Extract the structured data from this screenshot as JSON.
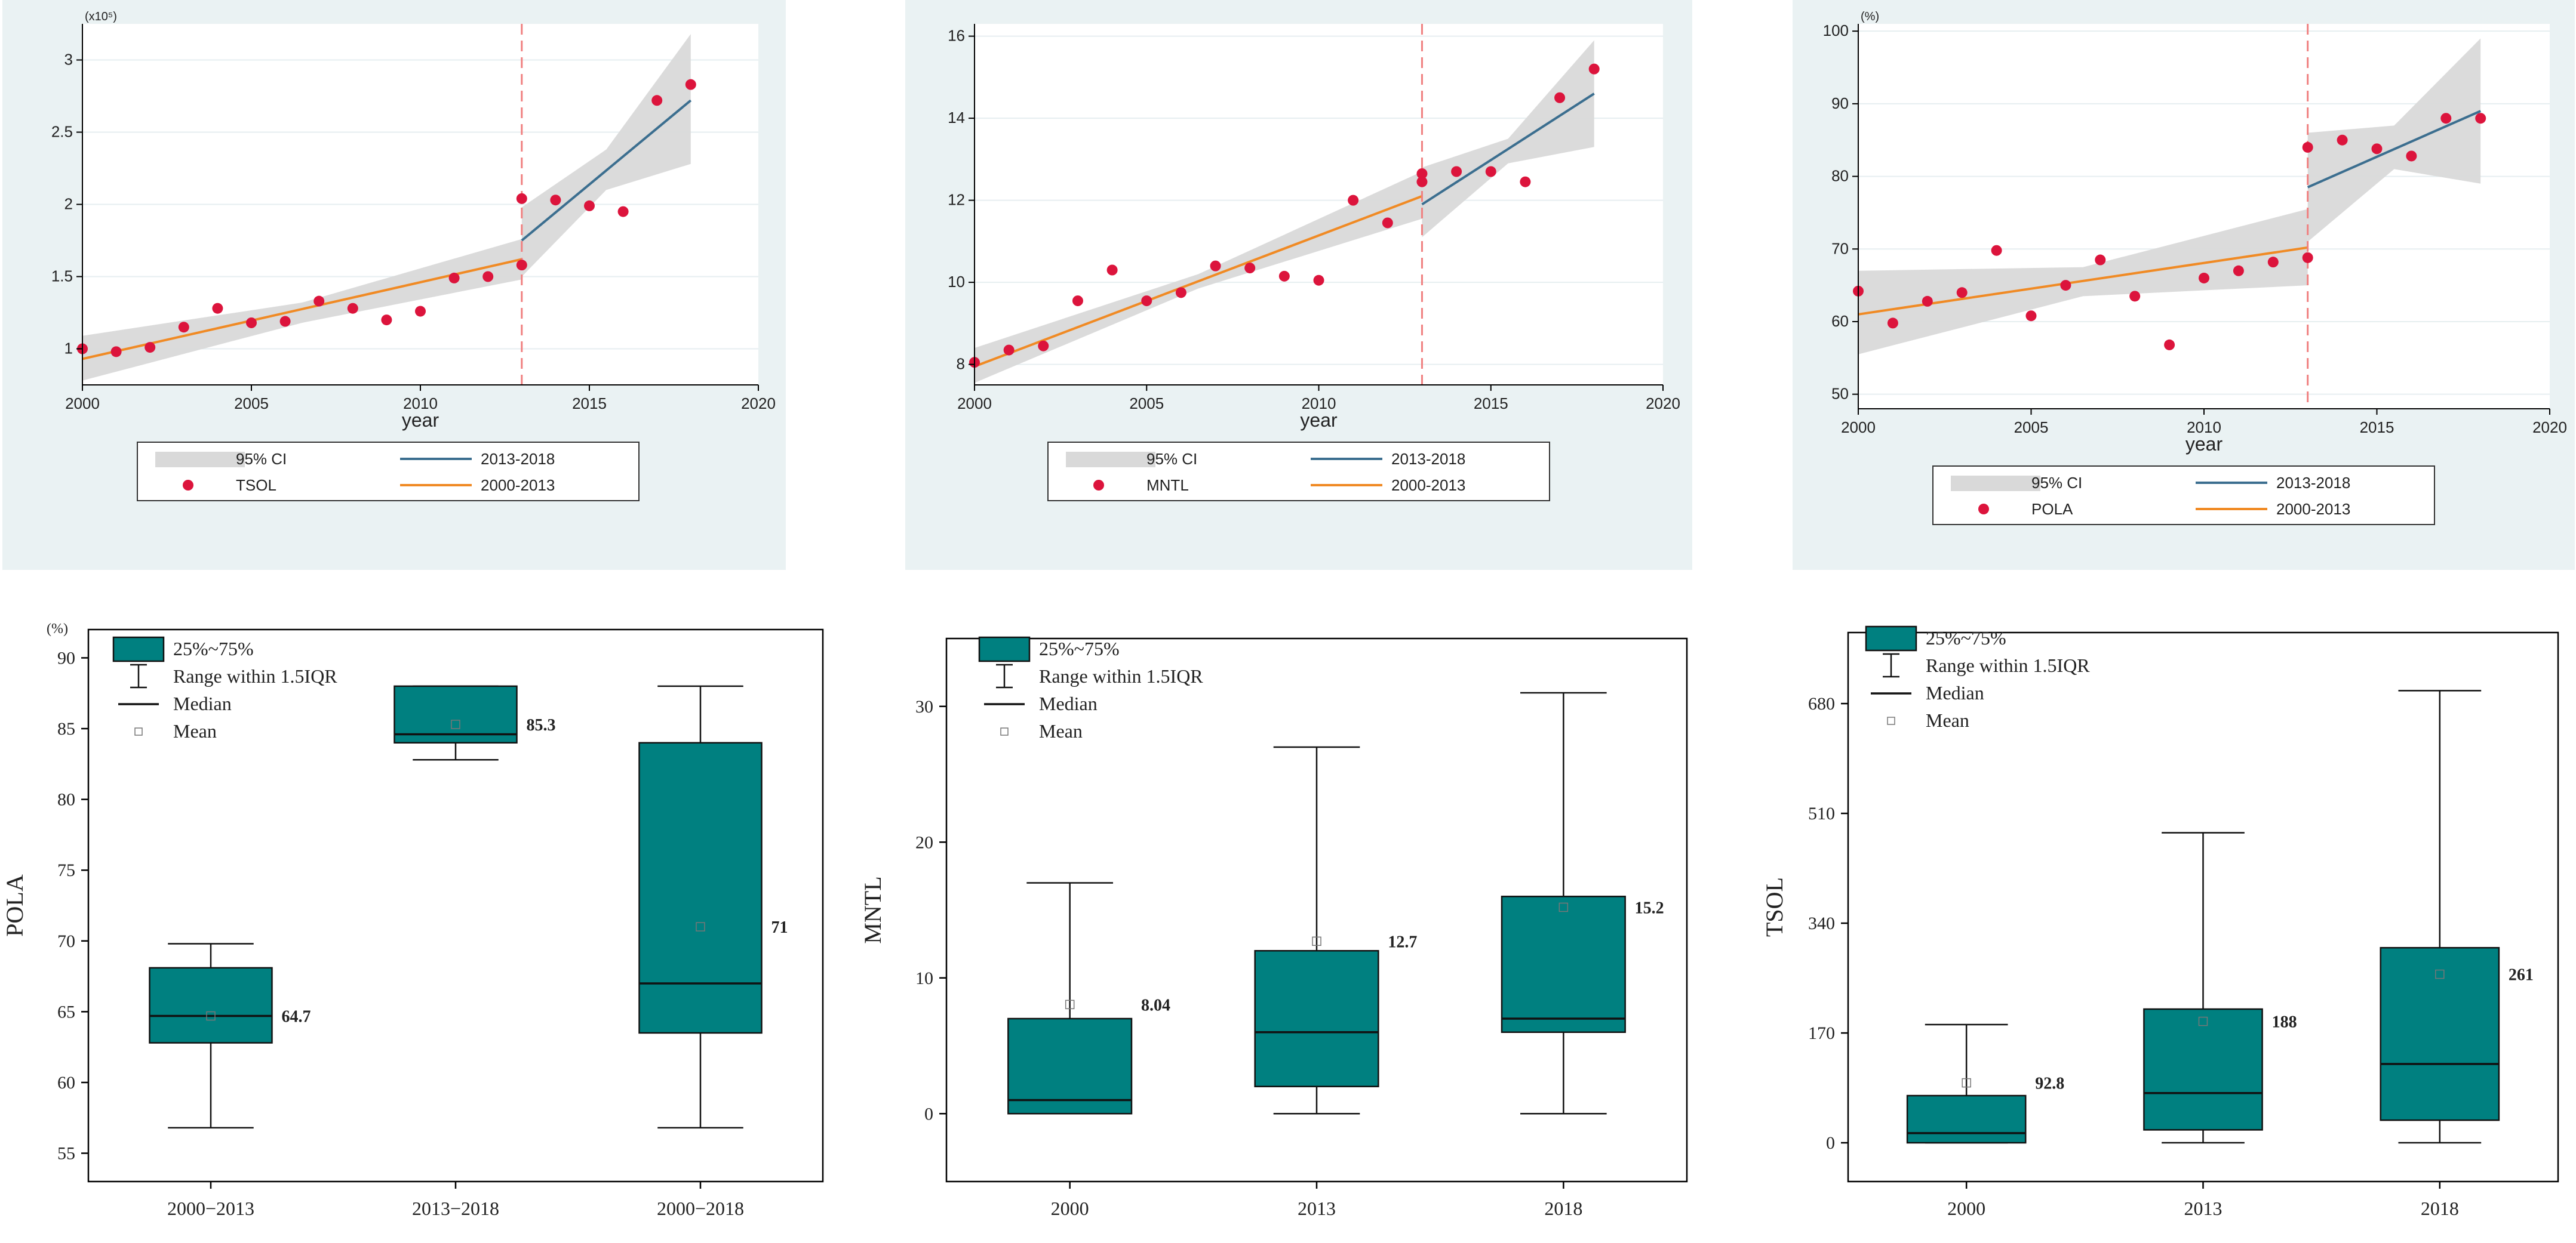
{
  "figure": {
    "colors": {
      "panel_bg": "#eaf2f3",
      "plot_bg": "#ffffff",
      "grid": "#e6eef0",
      "ci": "#d9d9d9",
      "line_2013_2018": "#3b6e8f",
      "line_2000_2013": "#f08a24",
      "dots": "#dc143c",
      "vline": "#f08080",
      "box_fill": "#008080",
      "box_stroke": "#111111"
    }
  },
  "chart_data": [
    {
      "type": "scatter",
      "id": "tsol_trend",
      "title": "",
      "xlabel": "year",
      "ylabel": "",
      "y_multiplier_label": "(x10⁵)",
      "xlim": [
        2000,
        2020
      ],
      "ylim": [
        0.75,
        3.25
      ],
      "x_ticks": [
        2000,
        2005,
        2010,
        2015,
        2020
      ],
      "y_ticks": [
        1,
        1.5,
        2,
        2.5,
        3
      ],
      "y_tick_labels": [
        "1",
        "1.5",
        "2",
        "2.5",
        "3"
      ],
      "break_year": 2013,
      "points": {
        "name": "TSOL",
        "x": [
          2000,
          2001,
          2002,
          2003,
          2004,
          2005,
          2006,
          2007,
          2008,
          2009,
          2010,
          2011,
          2012,
          2013,
          2013,
          2014,
          2015,
          2016,
          2017,
          2018
        ],
        "y": [
          1.0,
          0.98,
          1.01,
          1.15,
          1.28,
          1.18,
          1.19,
          1.33,
          1.28,
          1.2,
          1.26,
          1.49,
          1.5,
          1.58,
          2.04,
          2.03,
          1.99,
          1.95,
          2.72,
          2.83
        ]
      },
      "fit_2000_2013": {
        "name": "2000-2013",
        "x": [
          2000,
          2013
        ],
        "y": [
          0.93,
          1.62
        ]
      },
      "fit_2013_2018": {
        "name": "2013-2018",
        "x": [
          2013,
          2018
        ],
        "y": [
          1.75,
          2.72
        ]
      },
      "ci_2000_2013": {
        "x": [
          2000,
          2006.5,
          2013
        ],
        "lower": [
          0.78,
          1.18,
          1.48
        ],
        "upper": [
          1.09,
          1.32,
          1.76
        ]
      },
      "ci_2013_2018": {
        "x": [
          2013,
          2015.5,
          2018
        ],
        "lower": [
          1.5,
          2.1,
          2.28
        ],
        "upper": [
          1.98,
          2.38,
          3.18
        ]
      },
      "legend": [
        {
          "kind": "ci",
          "label": "95% CI"
        },
        {
          "kind": "line_2013_2018",
          "label": "2013-2018"
        },
        {
          "kind": "dot",
          "label": "TSOL"
        },
        {
          "kind": "line_2000_2013",
          "label": "2000-2013"
        }
      ]
    },
    {
      "type": "scatter",
      "id": "mntl_trend",
      "title": "",
      "xlabel": "year",
      "ylabel": "",
      "y_multiplier_label": "",
      "xlim": [
        2000,
        2020
      ],
      "ylim": [
        7.5,
        16.3
      ],
      "x_ticks": [
        2000,
        2005,
        2010,
        2015,
        2020
      ],
      "y_ticks": [
        8,
        10,
        12,
        14,
        16
      ],
      "y_tick_labels": [
        "8",
        "10",
        "12",
        "14",
        "16"
      ],
      "break_year": 2013,
      "points": {
        "name": "MNTL",
        "x": [
          2000,
          2001,
          2002,
          2003,
          2004,
          2005,
          2006,
          2007,
          2008,
          2009,
          2010,
          2011,
          2012,
          2013,
          2013,
          2014,
          2015,
          2016,
          2017,
          2018
        ],
        "y": [
          8.05,
          8.35,
          8.45,
          9.55,
          10.3,
          9.55,
          9.75,
          10.4,
          10.35,
          10.15,
          10.05,
          12.0,
          11.45,
          12.65,
          12.45,
          12.7,
          12.7,
          12.45,
          14.5,
          15.2
        ]
      },
      "fit_2000_2013": {
        "name": "2000-2013",
        "x": [
          2000,
          2013
        ],
        "y": [
          7.95,
          12.1
        ]
      },
      "fit_2013_2018": {
        "name": "2013-2018",
        "x": [
          2013,
          2018
        ],
        "y": [
          11.9,
          14.6
        ]
      },
      "ci_2000_2013": {
        "x": [
          2000,
          2006.5,
          2013
        ],
        "lower": [
          7.55,
          9.85,
          11.55
        ],
        "upper": [
          8.4,
          10.2,
          12.7
        ]
      },
      "ci_2013_2018": {
        "x": [
          2013,
          2015.5,
          2018
        ],
        "lower": [
          11.1,
          12.9,
          13.3
        ],
        "upper": [
          12.8,
          13.5,
          15.9
        ]
      },
      "legend": [
        {
          "kind": "ci",
          "label": "95% CI"
        },
        {
          "kind": "line_2013_2018",
          "label": "2013-2018"
        },
        {
          "kind": "dot",
          "label": "MNTL"
        },
        {
          "kind": "line_2000_2013",
          "label": "2000-2013"
        }
      ]
    },
    {
      "type": "scatter",
      "id": "pola_trend",
      "title": "",
      "xlabel": "year",
      "ylabel": "",
      "y_multiplier_label": "(%)",
      "xlim": [
        2000,
        2020
      ],
      "ylim": [
        48,
        101
      ],
      "x_ticks": [
        2000,
        2005,
        2010,
        2015,
        2020
      ],
      "y_ticks": [
        50,
        60,
        70,
        80,
        90,
        100
      ],
      "y_tick_labels": [
        "50",
        "60",
        "70",
        "80",
        "90",
        "100"
      ],
      "break_year": 2013,
      "points": {
        "name": "POLA",
        "x": [
          2000,
          2001,
          2002,
          2003,
          2004,
          2005,
          2006,
          2007,
          2008,
          2009,
          2010,
          2011,
          2012,
          2013,
          2013,
          2014,
          2015,
          2016,
          2017,
          2018
        ],
        "y": [
          64.2,
          59.8,
          62.8,
          64.0,
          69.8,
          60.8,
          65.0,
          68.5,
          63.5,
          56.8,
          66.0,
          67.0,
          68.2,
          68.8,
          84.0,
          85.0,
          83.8,
          82.8,
          88.0,
          88.0
        ]
      },
      "fit_2000_2013": {
        "name": "2000-2013",
        "x": [
          2000,
          2013
        ],
        "y": [
          61.0,
          70.2
        ]
      },
      "fit_2013_2018": {
        "name": "2013-2018",
        "x": [
          2013,
          2018
        ],
        "y": [
          78.5,
          89.0
        ]
      },
      "ci_2000_2013": {
        "x": [
          2000,
          2006.5,
          2013
        ],
        "lower": [
          55.5,
          63.5,
          65.0
        ],
        "upper": [
          67.0,
          67.5,
          75.5
        ]
      },
      "ci_2013_2018": {
        "x": [
          2013,
          2015.5,
          2018
        ],
        "lower": [
          71.0,
          81.0,
          79.0
        ],
        "upper": [
          86.0,
          87.0,
          99.0
        ]
      },
      "legend": [
        {
          "kind": "ci",
          "label": "95% CI"
        },
        {
          "kind": "line_2013_2018",
          "label": "2013-2018"
        },
        {
          "kind": "dot",
          "label": "POLA"
        },
        {
          "kind": "line_2000_2013",
          "label": "2000-2013"
        }
      ]
    },
    {
      "type": "box",
      "id": "pola_box",
      "ylabel": "POLA",
      "y_unit_label": "(%)",
      "ylim": [
        53,
        92
      ],
      "y_ticks": [
        55,
        60,
        65,
        70,
        75,
        80,
        85,
        90
      ],
      "y_tick_labels": [
        "55",
        "60",
        "65",
        "70",
        "75",
        "80",
        "85",
        "90"
      ],
      "categories": [
        "2000−2013",
        "2013−2018",
        "2000−2018"
      ],
      "boxes": [
        {
          "whisker_low": 56.8,
          "q1": 62.8,
          "median": 64.7,
          "q3": 68.1,
          "whisker_high": 69.8,
          "mean": 64.7,
          "mean_label": "64.7"
        },
        {
          "whisker_low": 82.8,
          "q1": 84.0,
          "median": 84.6,
          "q3": 88.0,
          "whisker_high": 88.0,
          "mean": 85.3,
          "mean_label": "85.3"
        },
        {
          "whisker_low": 56.8,
          "q1": 63.5,
          "median": 67.0,
          "q3": 84.0,
          "whisker_high": 88.0,
          "mean": 71.0,
          "mean_label": "71"
        }
      ],
      "legend": [
        {
          "kind": "box",
          "label": "25%~75%"
        },
        {
          "kind": "whisker",
          "label": "Range within 1.5IQR"
        },
        {
          "kind": "median",
          "label": "Median"
        },
        {
          "kind": "mean",
          "label": "Mean"
        }
      ]
    },
    {
      "type": "box",
      "id": "mntl_box",
      "ylabel": "MNTL",
      "y_unit_label": "",
      "ylim": [
        -5,
        35
      ],
      "y_ticks": [
        0,
        10,
        20,
        30
      ],
      "y_tick_labels": [
        "0",
        "10",
        "20",
        "30"
      ],
      "categories": [
        "2000",
        "2013",
        "2018"
      ],
      "boxes": [
        {
          "whisker_low": 0,
          "q1": 0,
          "median": 1,
          "q3": 7,
          "whisker_high": 17,
          "mean": 8.04,
          "mean_label": "8.04"
        },
        {
          "whisker_low": 0,
          "q1": 2,
          "median": 6,
          "q3": 12,
          "whisker_high": 27,
          "mean": 12.7,
          "mean_label": "12.7"
        },
        {
          "whisker_low": 0,
          "q1": 6,
          "median": 7,
          "q3": 16,
          "whisker_high": 31,
          "mean": 15.2,
          "mean_label": "15.2"
        }
      ],
      "legend": [
        {
          "kind": "box",
          "label": "25%~75%"
        },
        {
          "kind": "whisker",
          "label": "Range within 1.5IQR"
        },
        {
          "kind": "median",
          "label": "Median"
        },
        {
          "kind": "mean",
          "label": "Mean"
        }
      ]
    },
    {
      "type": "box",
      "id": "tsol_box",
      "ylabel": "TSOL",
      "y_unit_label": "",
      "ylim": [
        -60,
        790
      ],
      "y_ticks": [
        0,
        170,
        340,
        510,
        680
      ],
      "y_tick_labels": [
        "0",
        "170",
        "340",
        "510",
        "680"
      ],
      "categories": [
        "2000",
        "2013",
        "2018"
      ],
      "boxes": [
        {
          "whisker_low": 0,
          "q1": 0,
          "median": 15,
          "q3": 73,
          "whisker_high": 183,
          "mean": 92.8,
          "mean_label": "92.8"
        },
        {
          "whisker_low": 0,
          "q1": 20,
          "median": 77,
          "q3": 207,
          "whisker_high": 480,
          "mean": 188,
          "mean_label": "188"
        },
        {
          "whisker_low": 0,
          "q1": 35,
          "median": 122,
          "q3": 302,
          "whisker_high": 700,
          "mean": 261,
          "mean_label": "261"
        }
      ],
      "legend": [
        {
          "kind": "box",
          "label": "25%~75%"
        },
        {
          "kind": "whisker",
          "label": "Range within 1.5IQR"
        },
        {
          "kind": "median",
          "label": "Median"
        },
        {
          "kind": "mean",
          "label": "Mean"
        }
      ]
    }
  ]
}
